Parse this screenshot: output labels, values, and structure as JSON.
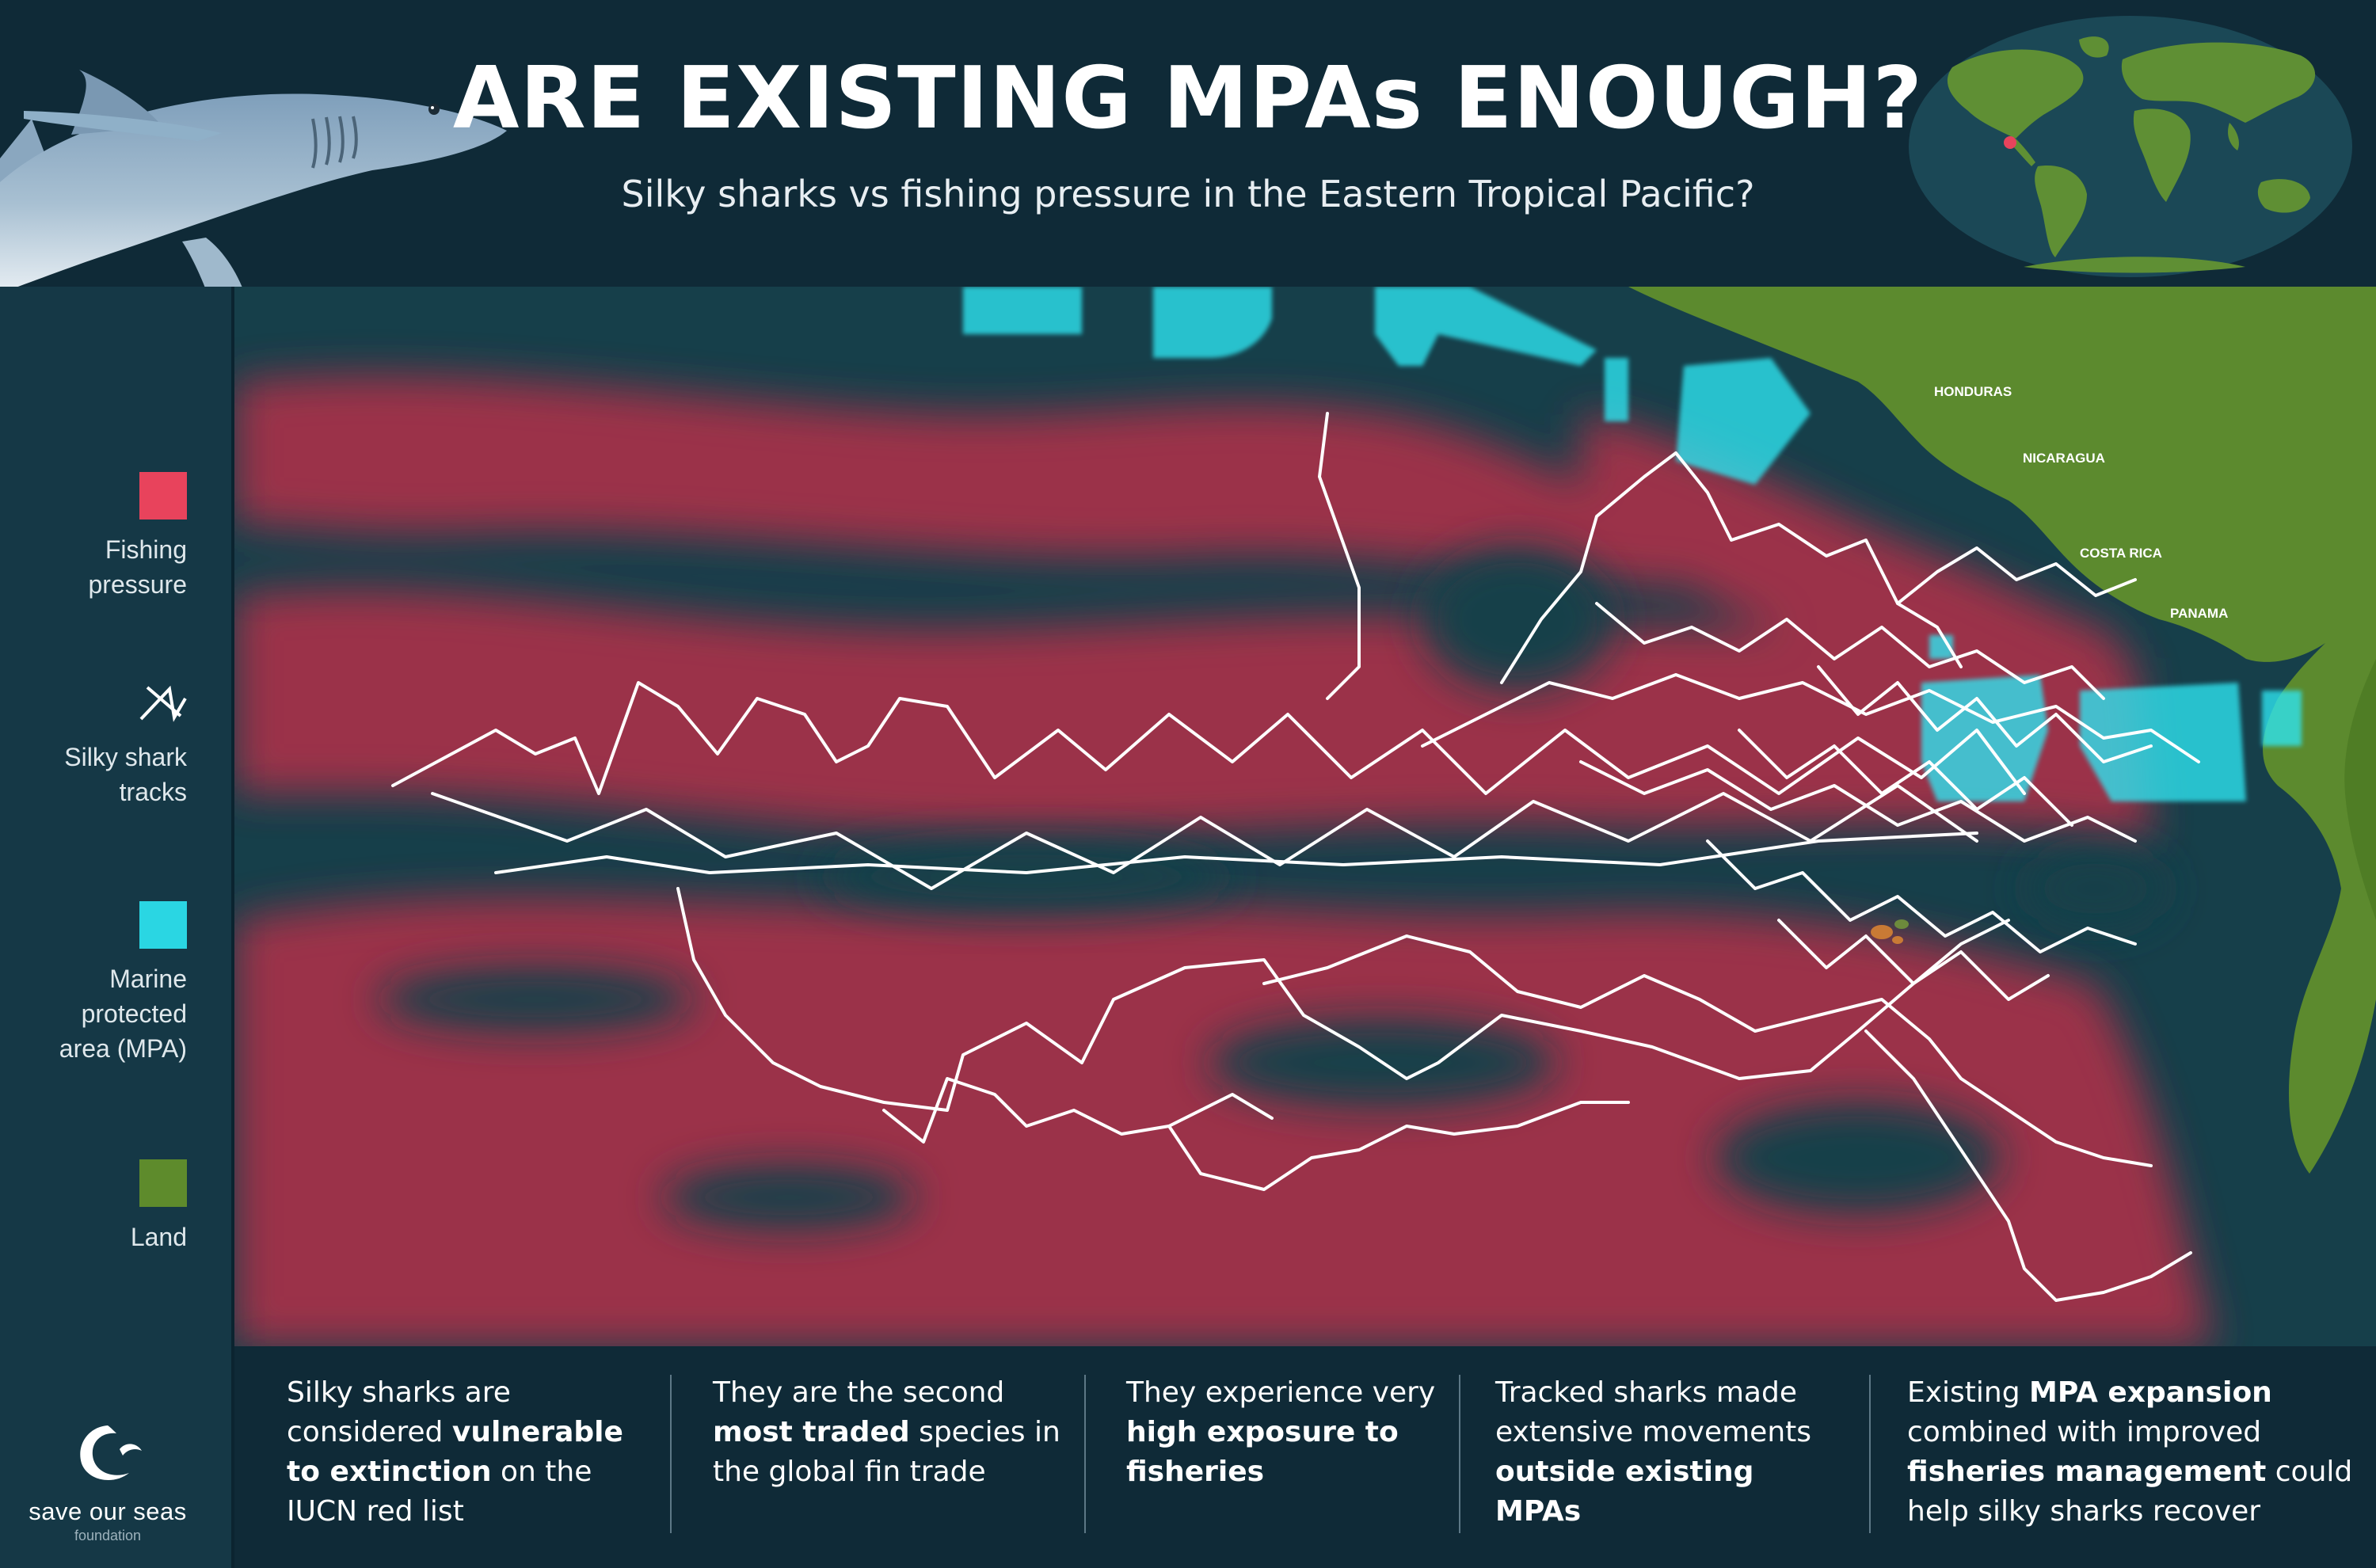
{
  "header": {
    "title": "ARE EXISTING MPAs ENOUGH?",
    "subtitle": "Silky sharks vs fishing pressure in the Eastern Tropical Pacific?"
  },
  "legend": [
    {
      "label": "Fishing\npressure",
      "color": "#e8435c",
      "icon": "red-square"
    },
    {
      "label": "Silky shark\ntracks",
      "color": "#ffffff",
      "icon": "track-lines-icon"
    },
    {
      "label": "Marine\nprotected\narea (MPA)",
      "color": "#2ad6e3",
      "icon": "cyan-square"
    },
    {
      "label": "Land",
      "color": "#5e8b2c",
      "icon": "green-square"
    }
  ],
  "map": {
    "countries": [
      "HONDURAS",
      "NICARAGUA",
      "COSTA RICA",
      "PANAMA"
    ],
    "colors": {
      "ocean": "#163f4a",
      "fishing": "#a3324a",
      "mpa": "#2ee6f2",
      "land": "#5c8a2e",
      "tracks": "#ffffff"
    }
  },
  "facts": [
    {
      "parts": [
        {
          "text": "Silky sharks are considered ",
          "bold": false
        },
        {
          "text": "vulnerable to extinction",
          "bold": true
        },
        {
          "text": " on the IUCN red list",
          "bold": false
        }
      ]
    },
    {
      "parts": [
        {
          "text": "They are the second ",
          "bold": false
        },
        {
          "text": "most traded",
          "bold": true
        },
        {
          "text": " species in the global fin trade",
          "bold": false
        }
      ]
    },
    {
      "parts": [
        {
          "text": "They experience very ",
          "bold": false
        },
        {
          "text": "high exposure to fisheries",
          "bold": true
        }
      ]
    },
    {
      "parts": [
        {
          "text": "Tracked sharks made extensive movements ",
          "bold": false
        },
        {
          "text": "outside existing MPAs",
          "bold": true
        }
      ]
    },
    {
      "parts": [
        {
          "text": "Existing ",
          "bold": false
        },
        {
          "text": "MPA expansion",
          "bold": true
        },
        {
          "text": " combined with improved ",
          "bold": false
        },
        {
          "text": "fisheries management",
          "bold": true
        },
        {
          "text": " could help silky sharks recover",
          "bold": false
        }
      ]
    }
  ],
  "logo": {
    "name": "save our seas",
    "sub": "foundation"
  }
}
